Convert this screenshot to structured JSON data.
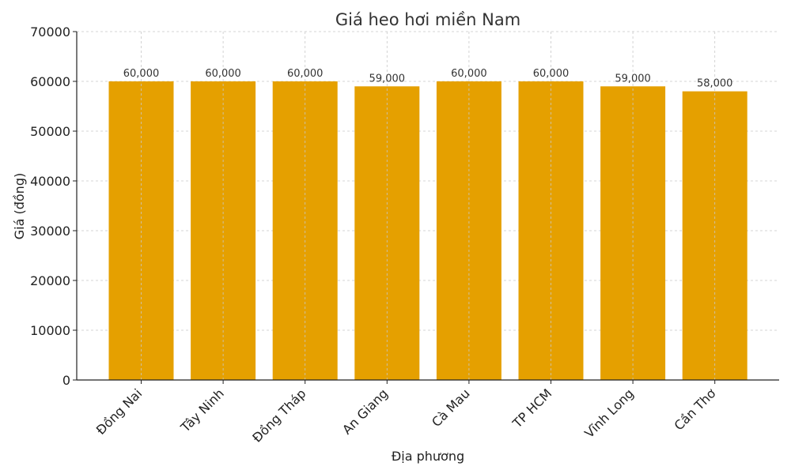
{
  "chart_data": {
    "type": "bar",
    "title": "Giá heo hơi miền Nam",
    "xlabel": "Địa phương",
    "ylabel": "Giá (đồng)",
    "categories": [
      "Đồng Nai",
      "Tây Ninh",
      "Đồng Tháp",
      "An Giang",
      "Cà Mau",
      "TP HCM",
      "Vĩnh Long",
      "Cần Thơ"
    ],
    "values": [
      60000,
      60000,
      60000,
      59000,
      60000,
      60000,
      59000,
      58000
    ],
    "value_labels": [
      "60,000",
      "60,000",
      "60,000",
      "59,000",
      "60,000",
      "60,000",
      "59,000",
      "58,000"
    ],
    "ylim": [
      0,
      70000
    ],
    "yticks": [
      0,
      10000,
      20000,
      30000,
      40000,
      50000,
      60000,
      70000
    ],
    "ytick_labels": [
      "0",
      "10000",
      "20000",
      "30000",
      "40000",
      "50000",
      "60000",
      "70000"
    ],
    "grid": true,
    "bar_color": "#e5a000"
  }
}
